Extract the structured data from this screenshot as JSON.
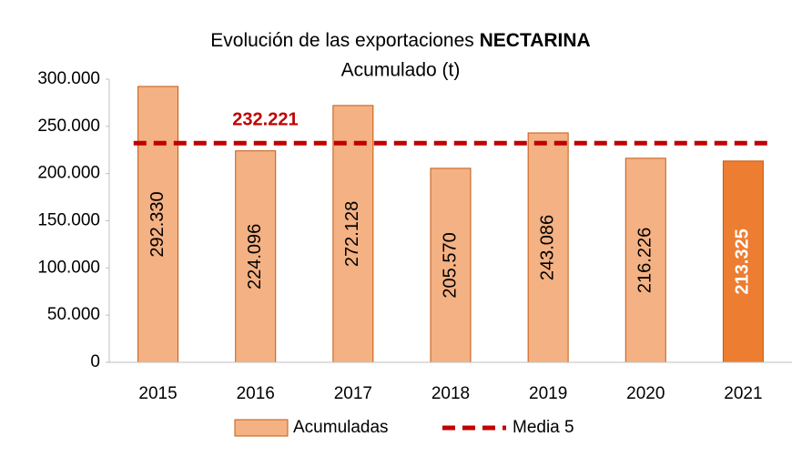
{
  "chart_data": {
    "type": "bar",
    "title": "Evolución de las exportaciones ",
    "title_bold": "NECTARINA",
    "subtitle": "Acumulado (t)",
    "categories": [
      "2015",
      "2016",
      "2017",
      "2018",
      "2019",
      "2020",
      "2021"
    ],
    "series": [
      {
        "name": "Acumuladas",
        "type": "bar",
        "colors": [
          "#f4b183",
          "#f4b183",
          "#f4b183",
          "#f4b183",
          "#f4b183",
          "#f4b183",
          "#ed7d31"
        ],
        "label_colors": [
          "#000000",
          "#000000",
          "#000000",
          "#000000",
          "#000000",
          "#000000",
          "#ffffff"
        ],
        "values": [
          292330,
          224096,
          272128,
          205570,
          243086,
          216226,
          213325
        ],
        "value_labels": [
          "292.330",
          "224.096",
          "272.128",
          "205.570",
          "243.086",
          "216.226",
          "213.325"
        ]
      },
      {
        "name": "Media 5",
        "type": "line",
        "color": "#c00000",
        "dashed": true,
        "value": 232221,
        "value_label": "232.221"
      }
    ],
    "ylim": [
      0,
      300000
    ],
    "yticks": [
      0,
      {
        "value": 50000,
        "label": "50.000"
      },
      {
        "value": 100000,
        "label": "100.000"
      },
      {
        "value": 150000,
        "label": "150.000"
      },
      {
        "value": 200000,
        "label": "200.000"
      },
      {
        "value": 250000,
        "label": "250.000"
      },
      {
        "value": 300000,
        "label": "300.000"
      }
    ]
  }
}
